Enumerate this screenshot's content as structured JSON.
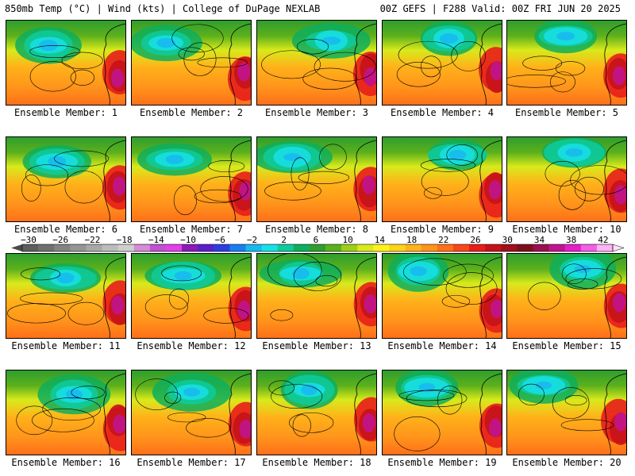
{
  "header": {
    "left": "850mb Temp (°C) | Wind (kts) | College of DuPage NEXLAB",
    "right": "00Z GEFS | F288 Valid: 00Z FRI JUN 20 2025"
  },
  "members": [
    "Ensemble Member: 1",
    "Ensemble Member: 2",
    "Ensemble Member: 3",
    "Ensemble Member: 4",
    "Ensemble Member: 5",
    "Ensemble Member: 6",
    "Ensemble Member: 7",
    "Ensemble Member: 8",
    "Ensemble Member: 9",
    "Ensemble Member: 10",
    "Ensemble Member: 11",
    "Ensemble Member: 12",
    "Ensemble Member: 13",
    "Ensemble Member: 14",
    "Ensemble Member: 15",
    "Ensemble Member: 16",
    "Ensemble Member: 17",
    "Ensemble Member: 18",
    "Ensemble Member: 19",
    "Ensemble Member: 20"
  ],
  "colorbar": {
    "labels": [
      "−30",
      "−26",
      "−22",
      "−18",
      "−14",
      "−10",
      "−6",
      "−2",
      "2",
      "6",
      "10",
      "14",
      "18",
      "22",
      "26",
      "30",
      "34",
      "38",
      "42"
    ],
    "colors": [
      "#5e5e5e",
      "#707070",
      "#838383",
      "#959595",
      "#a8a8a8",
      "#bcbcbc",
      "#cfcfcf",
      "#d58bd6",
      "#c050d0",
      "#e040e8",
      "#8a1ab8",
      "#5a1fc9",
      "#2a3ee0",
      "#1a7ef0",
      "#17b8f0",
      "#18e0e8",
      "#0ecb9d",
      "#0eae5c",
      "#2f9e2f",
      "#5cb01c",
      "#9ccf17",
      "#d8ea1b",
      "#fff21c",
      "#ffd318",
      "#ffb21a",
      "#ff931b",
      "#ff6f1a",
      "#f74719",
      "#e71e1b",
      "#c5121a",
      "#a0101a",
      "#7c0f1c",
      "#9b0f4f",
      "#c0148e",
      "#e31fc7",
      "#f25ee4",
      "#ffb2f7"
    ]
  }
}
